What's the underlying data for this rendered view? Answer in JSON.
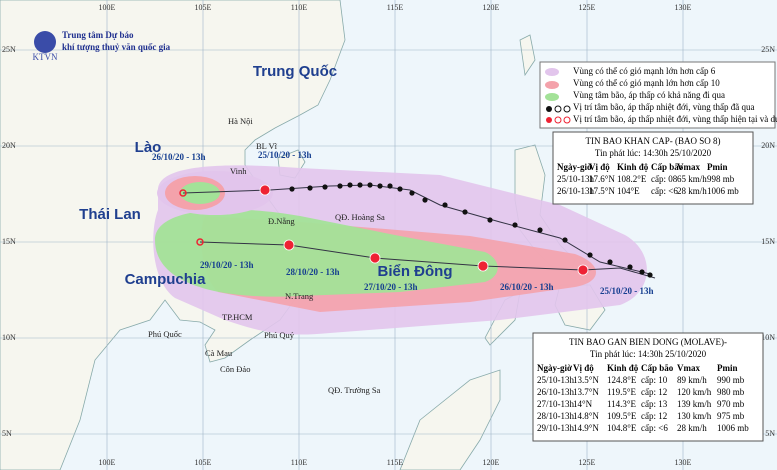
{
  "header": {
    "agency_line1": "Trung tâm Dự báo",
    "agency_line2": "khí tượng thuỷ văn quốc gia",
    "logo_text": "KTVN"
  },
  "grid": {
    "lon_labels": [
      "100E",
      "105E",
      "110E",
      "115E",
      "120E",
      "125E",
      "130E"
    ],
    "lat_labels": [
      "25N",
      "20N",
      "15N",
      "10N",
      "5N"
    ]
  },
  "labels": {
    "countries": [
      "Trung Quốc",
      "Lào",
      "Thái Lan",
      "Campuchia",
      "Biển Đông"
    ],
    "places": [
      "Hà Nội",
      "BL Vĩ",
      "Vinh",
      "Đ.Nẵng",
      "QĐ. Hoàng Sa",
      "N.Trang",
      "TP.HCM",
      "Phú Quốc",
      "Phú Quý",
      "Cà Mau",
      "Côn Đảo",
      "QĐ. Trường Sa"
    ],
    "times": [
      "26/10/20 - 13h",
      "25/10/20 - 13h",
      "29/10/20 - 13h",
      "28/10/20 - 13h",
      "27/10/20 - 13h",
      "26/10/20 - 13h",
      "25/10/20 - 13h"
    ]
  },
  "legend": [
    "Vùng có thể có gió mạnh lớn hơn cấp 6",
    "Vùng có thể có gió mạnh lớn hơn cấp 10",
    "Vùng tâm bão, áp thấp có khả năng đi qua",
    "Vị trí tâm bão, áp thấp nhiệt đới, vùng thấp đã qua",
    "Vị trí tâm bão, áp thấp nhiệt đới, vùng thấp hiện tại và dự báo"
  ],
  "bulletins": [
    {
      "title": "TIN BAO KHAN CAP- (BAO SO 8)",
      "issued": "Tin phát lúc: 14:30h 25/10/2020",
      "columns": [
        "Ngày-giờ",
        "Vị độ",
        "Kinh độ",
        "Cấp bão",
        "Vmax",
        "Pmin"
      ],
      "rows": [
        [
          "25/10-13h",
          "17.6°N",
          "108.2°E",
          "cấp: 08",
          "65 km/h",
          "998 mb"
        ],
        [
          "26/10-13h",
          "17.5°N",
          "104°E",
          "cấp: <6",
          "28 km/h",
          "1006 mb"
        ]
      ]
    },
    {
      "title": "TIN BAO GAN BIEN DONG (MOLAVE)-",
      "issued": "Tin phát lúc: 14:30h 25/10/2020",
      "columns": [
        "Ngày-giờ",
        "Vị độ",
        "Kinh độ",
        "Cấp bão",
        "Vmax",
        "Pmin"
      ],
      "rows": [
        [
          "25/10-13h",
          "13.5°N",
          "124.8°E",
          "cấp: 10",
          "89 km/h",
          "990 mb"
        ],
        [
          "26/10-13h",
          "13.7°N",
          "119.5°E",
          "cấp: 12",
          "120 km/h",
          "980 mb"
        ],
        [
          "27/10-13h",
          "14°N",
          "114.3°E",
          "cấp: 13",
          "139 km/h",
          "970 mb"
        ],
        [
          "28/10-13h",
          "14.8°N",
          "109.5°E",
          "cấp: 12",
          "130 km/h",
          "975 mb"
        ],
        [
          "29/10-13h",
          "14.9°N",
          "104.8°E",
          "cấp: <6",
          "28 km/h",
          "1006 mb"
        ]
      ]
    }
  ]
}
